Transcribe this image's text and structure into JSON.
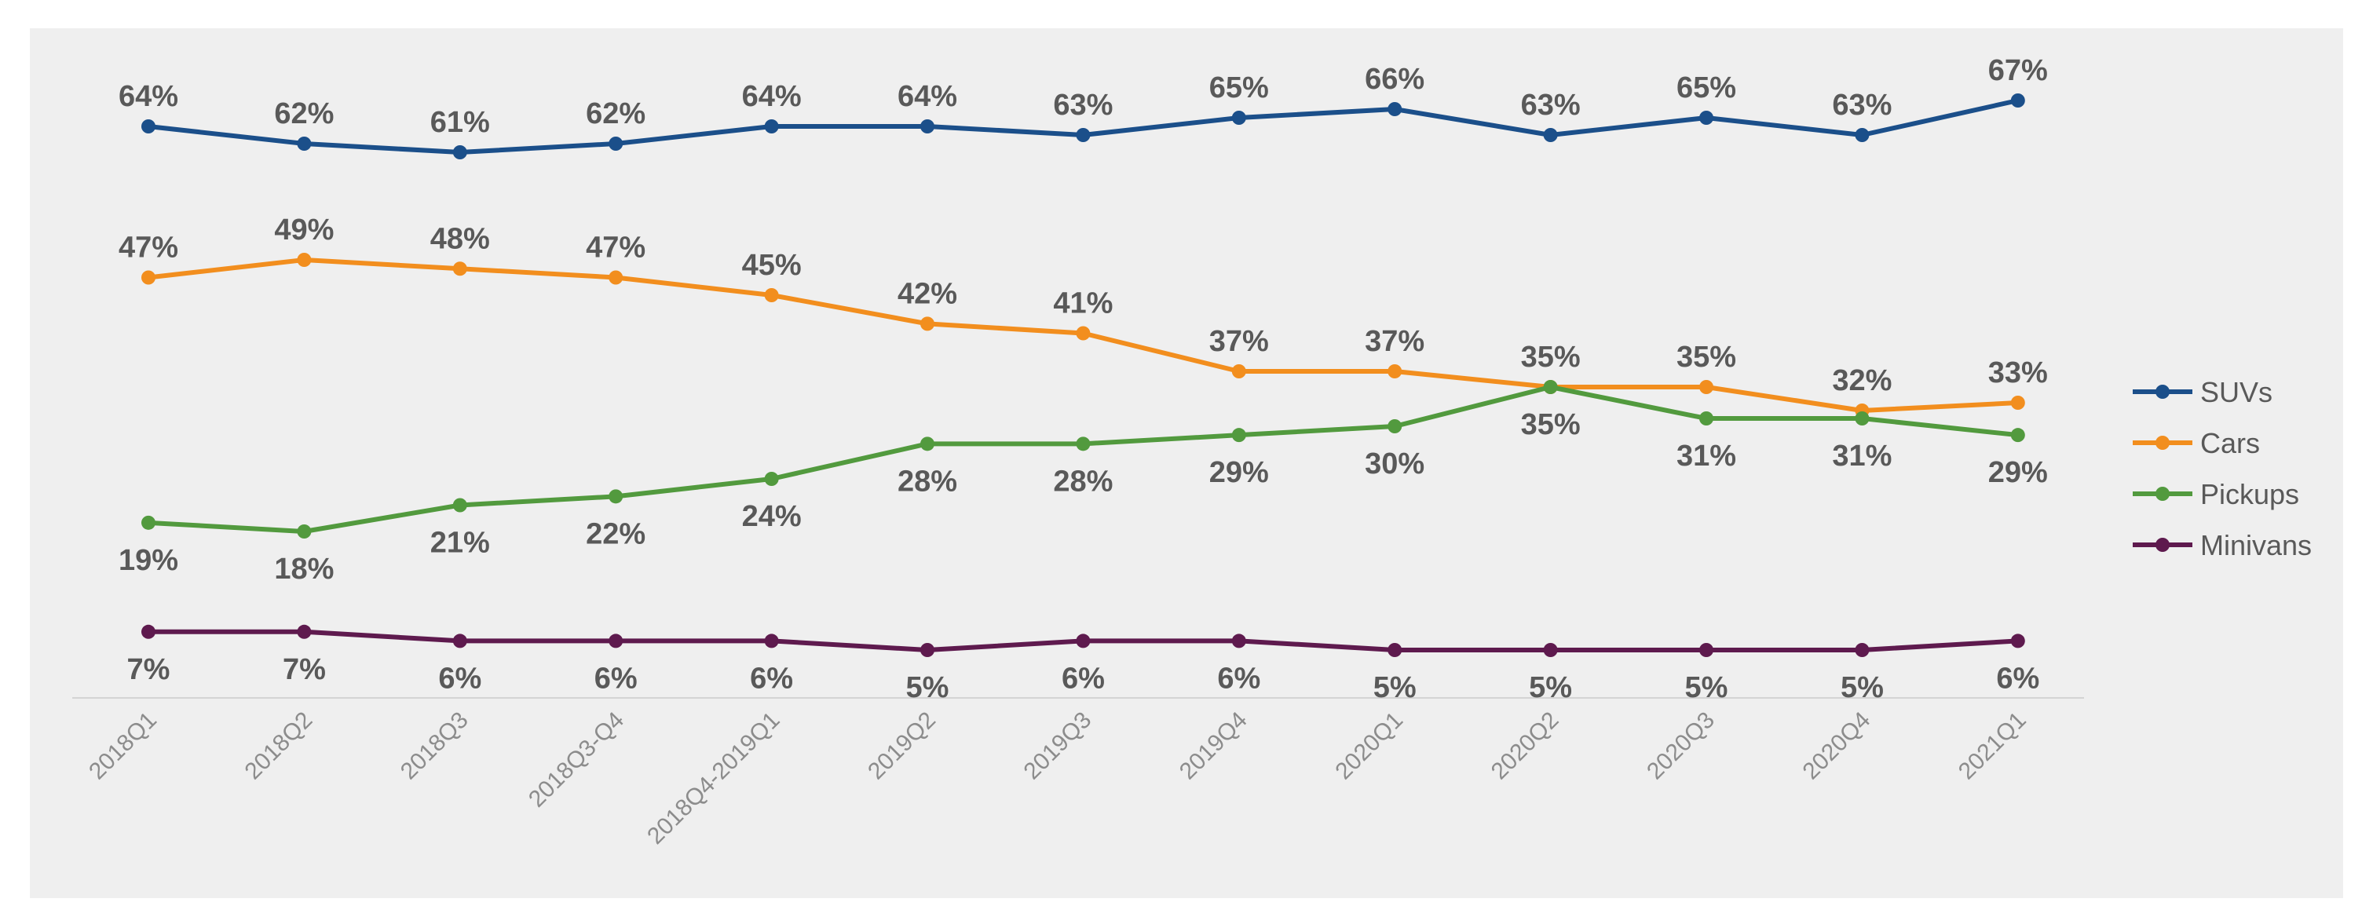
{
  "chart_data": {
    "type": "line",
    "categories": [
      "2018Q1",
      "2018Q2",
      "2018Q3",
      "2018Q3-Q4",
      "2018Q4-2019Q1",
      "2019Q2",
      "2019Q3",
      "2019Q4",
      "2020Q1",
      "2020Q2",
      "2020Q3",
      "2020Q4",
      "2021Q1"
    ],
    "series": [
      {
        "name": "SUVs",
        "color": "#1b4f8a",
        "values": [
          64,
          62,
          61,
          62,
          64,
          64,
          63,
          65,
          66,
          63,
          65,
          63,
          67
        ],
        "labels": [
          "64%",
          "62%",
          "61%",
          "62%",
          "64%",
          "64%",
          "63%",
          "65%",
          "66%",
          "63%",
          "65%",
          "63%",
          "67%"
        ]
      },
      {
        "name": "Cars",
        "color": "#f28e1e",
        "values": [
          47,
          49,
          48,
          47,
          45,
          42,
          41,
          37,
          37,
          35,
          35,
          32,
          33
        ],
        "labels": [
          "47%",
          "49%",
          "48%",
          "47%",
          "45%",
          "42%",
          "41%",
          "37%",
          "37%",
          "35%",
          "35%",
          "32%",
          "33%"
        ]
      },
      {
        "name": "Pickups",
        "color": "#529a3e",
        "values": [
          19,
          18,
          21,
          22,
          24,
          28,
          28,
          29,
          30,
          35,
          31,
          31,
          29
        ],
        "labels": [
          "19%",
          "18%",
          "21%",
          "22%",
          "24%",
          "28%",
          "28%",
          "29%",
          "30%",
          "35%",
          "31%",
          "31%",
          "29%"
        ]
      },
      {
        "name": "Minivans",
        "color": "#5e1a4e",
        "values": [
          7,
          7,
          6,
          6,
          6,
          5,
          6,
          6,
          5,
          5,
          5,
          5,
          6
        ],
        "labels": [
          "7%",
          "7%",
          "6%",
          "6%",
          "6%",
          "5%",
          "6%",
          "6%",
          "5%",
          "5%",
          "5%",
          "5%",
          "6%"
        ]
      }
    ],
    "ylim": [
      0,
      70
    ],
    "grid": false,
    "legend": "right"
  }
}
